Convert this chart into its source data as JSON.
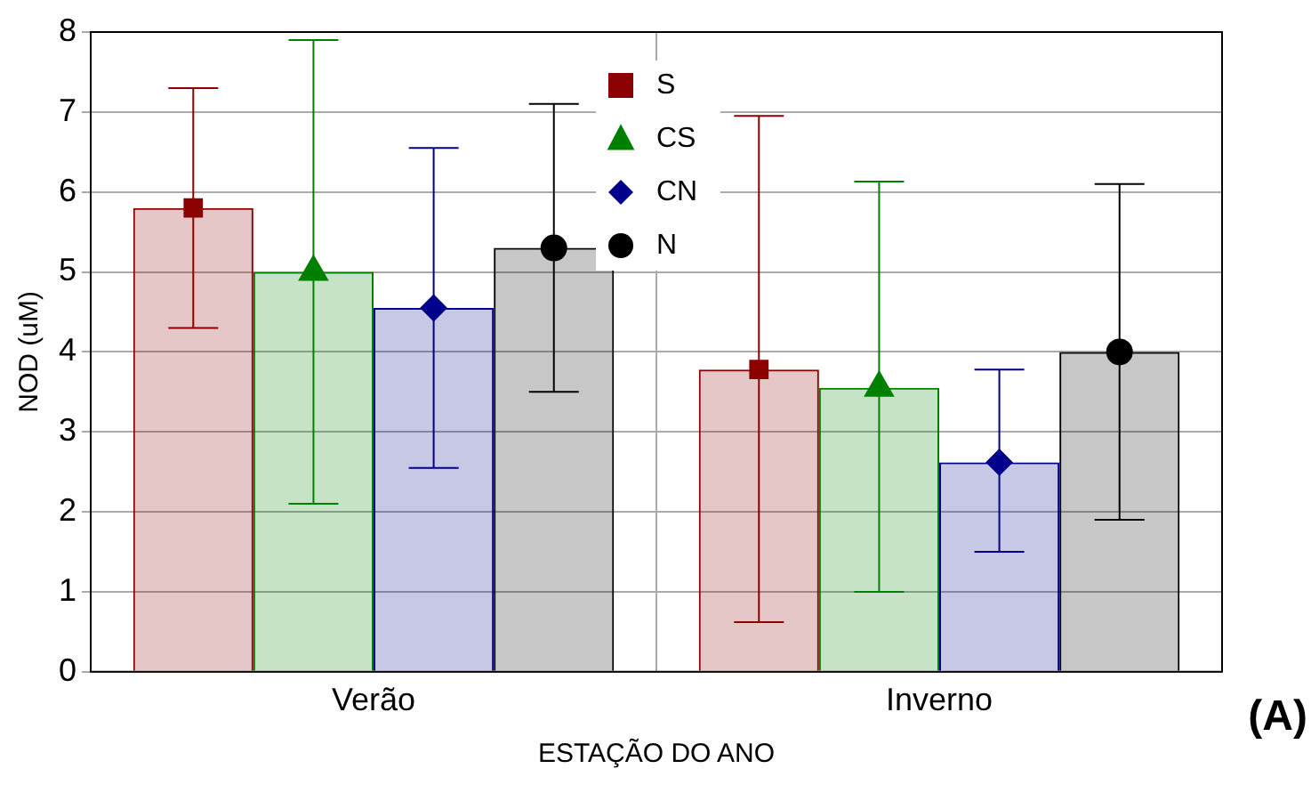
{
  "chart_data": {
    "type": "bar",
    "xlabel": "ESTAÇÃO DO ANO",
    "ylabel": "NOD (uM)",
    "categories": [
      "Verão",
      "Inverno"
    ],
    "series": [
      {
        "name": "S",
        "color": "#8b0000",
        "values": [
          5.8,
          3.78
        ],
        "errors": [
          [
            4.3,
            7.3
          ],
          [
            0.62,
            6.95
          ]
        ]
      },
      {
        "name": "CS",
        "color": "#008000",
        "values": [
          5.0,
          3.55
        ],
        "errors": [
          [
            2.1,
            7.9
          ],
          [
            1.0,
            6.13
          ]
        ]
      },
      {
        "name": "CN",
        "color": "#00008b",
        "values": [
          4.55,
          2.62
        ],
        "errors": [
          [
            2.55,
            6.55
          ],
          [
            1.5,
            3.78
          ]
        ]
      },
      {
        "name": "N",
        "color": "#000000",
        "values": [
          5.3,
          4.0
        ],
        "errors": [
          [
            3.5,
            7.1
          ],
          [
            1.9,
            6.1
          ]
        ]
      },
      {
        "type": "scatter",
        "color": "#8b0000",
        "marker": "square",
        "x": [
          "Verão",
          "Inverno"
        ],
        "values": [
          5.8,
          3.78
        ]
      },
      {
        "type": "scatter",
        "color": "#008000",
        "marker": "triangle",
        "x": [
          "Verão",
          "Inverno"
        ],
        "values": [
          5.0,
          3.55
        ]
      },
      {
        "type": "scatter",
        "color": "#00008b",
        "marker": "diamond",
        "x": [
          "Verão",
          "Inverno"
        ],
        "values": [
          4.55,
          2.62
        ]
      },
      {
        "type": "scatter",
        "color": "#000000",
        "marker": "circle",
        "x": [
          "Verão",
          "Inverno"
        ],
        "values": [
          5.3,
          4.0
        ]
      }
    ],
    "ylim": [
      0,
      8
    ],
    "yticks": [
      0,
      1,
      2,
      3,
      4,
      5,
      6,
      7,
      8
    ],
    "grid": true,
    "legend": "top",
    "annotations": [
      "(A)"
    ]
  }
}
